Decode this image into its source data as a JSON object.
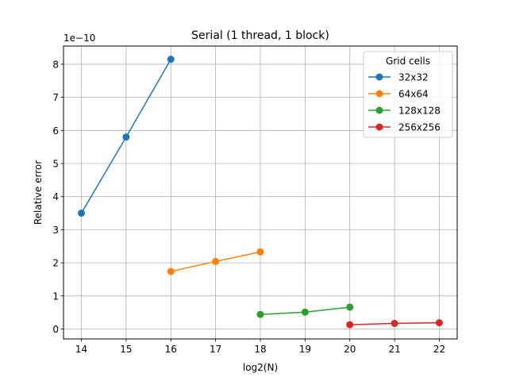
{
  "chart_data": {
    "type": "line",
    "title": "Serial (1 thread, 1 block)",
    "xlabel": "log2(N)",
    "ylabel": "Relative error",
    "y_multiplier_label": "1e−10",
    "xlim": [
      13.6,
      22.4
    ],
    "ylim": [
      -0.3,
      8.55
    ],
    "xticks": [
      14,
      15,
      16,
      17,
      18,
      19,
      20,
      21,
      22
    ],
    "yticks": [
      0,
      1,
      2,
      3,
      4,
      5,
      6,
      7,
      8
    ],
    "grid": true,
    "legend_title": "Grid cells",
    "legend_position": "top-right",
    "series": [
      {
        "name": "32x32",
        "color": "#1f77b4",
        "x": [
          14,
          15,
          16
        ],
        "y": [
          3.5,
          5.8,
          8.15
        ]
      },
      {
        "name": "64x64",
        "color": "#ff7f0e",
        "x": [
          16,
          17,
          18
        ],
        "y": [
          1.74,
          2.04,
          2.33
        ]
      },
      {
        "name": "128x128",
        "color": "#2ca02c",
        "x": [
          18,
          19,
          20
        ],
        "y": [
          0.44,
          0.51,
          0.66
        ]
      },
      {
        "name": "256x256",
        "color": "#d62728",
        "x": [
          20,
          21,
          22
        ],
        "y": [
          0.13,
          0.17,
          0.19
        ]
      }
    ]
  }
}
